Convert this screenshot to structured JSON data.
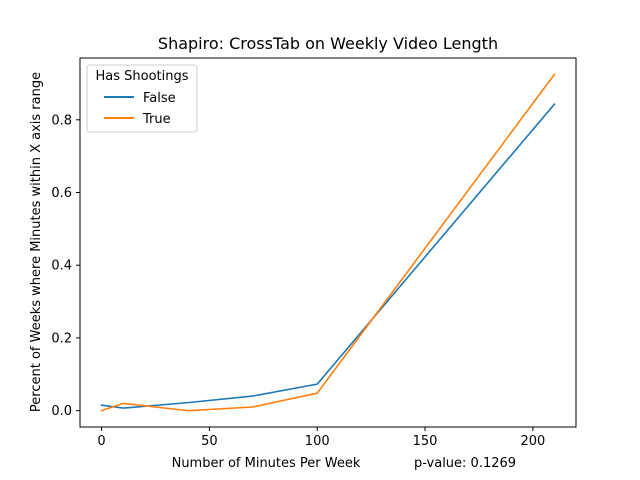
{
  "chart_data": {
    "type": "line",
    "title": "Shapiro: CrossTab on Weekly Video Length",
    "xlabel": "Number of Minutes Per Week",
    "xlabel_note": "p-value: 0.1269",
    "ylabel": "Percent of Weeks where Minutes within X axis range",
    "xlim": [
      -10,
      220
    ],
    "ylim": [
      -0.045,
      0.97
    ],
    "xticks": [
      0,
      50,
      100,
      150,
      200
    ],
    "yticks": [
      0.0,
      0.2,
      0.4,
      0.6,
      0.8
    ],
    "ytick_labels": [
      "0.0",
      "0.2",
      "0.4",
      "0.6",
      "0.8"
    ],
    "grid": false,
    "legend": {
      "title": "Has Shootings",
      "placement": "top-left"
    },
    "series": [
      {
        "name": "False",
        "color": "#1f77b4",
        "x": [
          0,
          10,
          40,
          70,
          100,
          210
        ],
        "y": [
          0.015,
          0.007,
          0.022,
          0.04,
          0.073,
          0.843
        ]
      },
      {
        "name": "True",
        "color": "#ff7f0e",
        "x": [
          0,
          10,
          40,
          70,
          100,
          210
        ],
        "y": [
          0.0,
          0.02,
          0.0,
          0.01,
          0.048,
          0.925
        ]
      }
    ]
  }
}
